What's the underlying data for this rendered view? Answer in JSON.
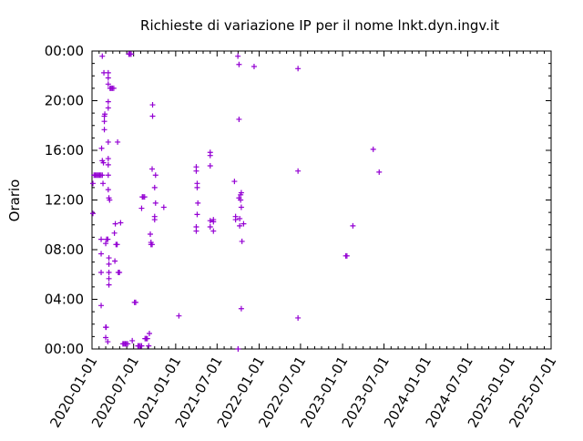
{
  "chart_data": {
    "type": "scatter",
    "title": "Richieste di variazione IP per il nome lnkt.dyn.ingv.it",
    "xlabel": "",
    "ylabel": "Orario",
    "x_axis_type": "date",
    "xlim": [
      "2020-01-01",
      "2025-07-01"
    ],
    "ylim": [
      "00:00",
      "24:00"
    ],
    "x_ticks": [
      "2020-01-01",
      "2020-07-01",
      "2021-01-01",
      "2021-07-01",
      "2022-01-01",
      "2022-07-01",
      "2023-01-01",
      "2023-07-01",
      "2024-01-01",
      "2024-07-01",
      "2025-01-01",
      "2025-07-01"
    ],
    "y_ticks": [
      "00:00",
      "04:00",
      "08:00",
      "12:00",
      "16:00",
      "20:00",
      "00:00"
    ],
    "grid": false,
    "marker": "plus",
    "series_color": "#9400d3",
    "series": [
      {
        "points": [
          [
            "2020-01-05",
            "10:55"
          ],
          [
            "2020-01-05",
            "13:20"
          ],
          [
            "2020-01-10",
            "14:00"
          ],
          [
            "2020-01-15",
            "14:00"
          ],
          [
            "2020-01-20",
            "14:00"
          ],
          [
            "2020-01-25",
            "14:00"
          ],
          [
            "2020-01-30",
            "14:00"
          ],
          [
            "2020-02-04",
            "14:00"
          ],
          [
            "2020-02-09",
            "14:00"
          ],
          [
            "2020-02-15",
            "14:00"
          ],
          [
            "2020-02-15",
            "23:35"
          ],
          [
            "2020-02-15",
            "15:10"
          ],
          [
            "2020-02-10",
            "08:50"
          ],
          [
            "2020-02-10",
            "07:40"
          ],
          [
            "2020-02-10",
            "06:10"
          ],
          [
            "2020-02-10",
            "03:30"
          ],
          [
            "2020-02-12",
            "16:10"
          ],
          [
            "2020-02-18",
            "13:20"
          ],
          [
            "2020-02-20",
            "15:00"
          ],
          [
            "2020-02-22",
            "22:15"
          ],
          [
            "2020-02-24",
            "17:40"
          ],
          [
            "2020-02-24",
            "18:20"
          ],
          [
            "2020-02-24",
            "18:45"
          ],
          [
            "2020-02-26",
            "18:55"
          ],
          [
            "2020-03-01",
            "01:45"
          ],
          [
            "2020-03-03",
            "01:45"
          ],
          [
            "2020-03-01",
            "00:55"
          ],
          [
            "2020-03-01",
            "08:30"
          ],
          [
            "2020-03-05",
            "08:50"
          ],
          [
            "2020-03-10",
            "08:50"
          ],
          [
            "2020-03-10",
            "00:35"
          ],
          [
            "2020-03-12",
            "22:15"
          ],
          [
            "2020-03-12",
            "21:50"
          ],
          [
            "2020-03-12",
            "21:20"
          ],
          [
            "2020-03-12",
            "19:55"
          ],
          [
            "2020-03-12",
            "19:25"
          ],
          [
            "2020-03-12",
            "16:40"
          ],
          [
            "2020-03-12",
            "15:20"
          ],
          [
            "2020-03-12",
            "14:50"
          ],
          [
            "2020-03-12",
            "14:00"
          ],
          [
            "2020-03-12",
            "12:50"
          ],
          [
            "2020-03-15",
            "12:10"
          ],
          [
            "2020-03-15",
            "07:20"
          ],
          [
            "2020-03-15",
            "06:50"
          ],
          [
            "2020-03-15",
            "06:10"
          ],
          [
            "2020-03-15",
            "05:40"
          ],
          [
            "2020-03-15",
            "05:10"
          ],
          [
            "2020-03-18",
            "12:00"
          ],
          [
            "2020-03-20",
            "21:00"
          ],
          [
            "2020-03-25",
            "21:00"
          ],
          [
            "2020-03-30",
            "21:00"
          ],
          [
            "2020-04-05",
            "21:00"
          ],
          [
            "2020-04-08",
            "09:20"
          ],
          [
            "2020-04-10",
            "07:05"
          ],
          [
            "2020-04-12",
            "10:05"
          ],
          [
            "2020-04-15",
            "08:25"
          ],
          [
            "2020-04-20",
            "08:25"
          ],
          [
            "2020-04-22",
            "16:40"
          ],
          [
            "2020-04-25",
            "06:10"
          ],
          [
            "2020-04-30",
            "06:10"
          ],
          [
            "2020-05-05",
            "10:10"
          ],
          [
            "2020-05-15",
            "00:25"
          ],
          [
            "2020-05-20",
            "00:25"
          ],
          [
            "2020-05-25",
            "00:25"
          ],
          [
            "2020-05-30",
            "00:25"
          ],
          [
            "2020-06-05",
            "00:25"
          ],
          [
            "2020-06-10",
            "23:45"
          ],
          [
            "2020-06-15",
            "23:45"
          ],
          [
            "2020-06-20",
            "23:45"
          ],
          [
            "2020-06-25",
            "00:40"
          ],
          [
            "2020-07-05",
            "03:45"
          ],
          [
            "2020-07-10",
            "03:45"
          ],
          [
            "2020-07-20",
            "00:15"
          ],
          [
            "2020-07-25",
            "00:15"
          ],
          [
            "2020-07-30",
            "00:15"
          ],
          [
            "2020-08-05",
            "00:15"
          ],
          [
            "2020-08-05",
            "11:20"
          ],
          [
            "2020-08-08",
            "12:15"
          ],
          [
            "2020-08-12",
            "12:15"
          ],
          [
            "2020-08-18",
            "12:15"
          ],
          [
            "2020-08-20",
            "00:50"
          ],
          [
            "2020-08-25",
            "00:50"
          ],
          [
            "2020-08-30",
            "00:50"
          ],
          [
            "2020-09-05",
            "00:15"
          ],
          [
            "2020-09-08",
            "01:15"
          ],
          [
            "2020-09-12",
            "09:15"
          ],
          [
            "2020-09-15",
            "08:35"
          ],
          [
            "2020-09-15",
            "08:25"
          ],
          [
            "2020-09-20",
            "08:25"
          ],
          [
            "2020-09-20",
            "14:30"
          ],
          [
            "2020-09-22",
            "19:40"
          ],
          [
            "2020-09-22",
            "18:45"
          ],
          [
            "2020-10-01",
            "10:40"
          ],
          [
            "2020-10-01",
            "10:25"
          ],
          [
            "2020-10-01",
            "13:00"
          ],
          [
            "2020-10-05",
            "14:00"
          ],
          [
            "2020-10-05",
            "11:45"
          ],
          [
            "2020-11-10",
            "11:25"
          ],
          [
            "2021-01-15",
            "02:40"
          ],
          [
            "2021-04-01",
            "14:40"
          ],
          [
            "2021-04-01",
            "14:20"
          ],
          [
            "2021-04-05",
            "13:00"
          ],
          [
            "2021-04-08",
            "11:45"
          ],
          [
            "2021-04-05",
            "10:50"
          ],
          [
            "2021-04-01",
            "09:50"
          ],
          [
            "2021-04-01",
            "09:30"
          ],
          [
            "2021-04-05",
            "13:20"
          ],
          [
            "2021-06-01",
            "15:50"
          ],
          [
            "2021-06-01",
            "15:35"
          ],
          [
            "2021-06-01",
            "14:45"
          ],
          [
            "2021-06-01",
            "10:20"
          ],
          [
            "2021-06-01",
            "09:50"
          ],
          [
            "2021-06-15",
            "10:25"
          ],
          [
            "2021-06-15",
            "10:15"
          ],
          [
            "2021-06-15",
            "09:30"
          ],
          [
            "2021-09-15",
            "13:30"
          ],
          [
            "2021-09-20",
            "10:40"
          ],
          [
            "2021-09-20",
            "10:25"
          ],
          [
            "2021-09-30",
            "23:35"
          ],
          [
            "2021-10-01",
            "00:00"
          ],
          [
            "2021-10-05",
            "22:55"
          ],
          [
            "2021-10-05",
            "18:30"
          ],
          [
            "2021-10-05",
            "12:10"
          ],
          [
            "2021-10-08",
            "10:30"
          ],
          [
            "2021-10-08",
            "09:55"
          ],
          [
            "2021-10-12",
            "12:25"
          ],
          [
            "2021-10-12",
            "12:00"
          ],
          [
            "2021-10-15",
            "12:35"
          ],
          [
            "2021-10-15",
            "11:25"
          ],
          [
            "2021-10-18",
            "08:40"
          ],
          [
            "2021-10-15",
            "03:15"
          ],
          [
            "2021-10-25",
            "10:05"
          ],
          [
            "2021-12-10",
            "22:45"
          ],
          [
            "2022-06-20",
            "22:35"
          ],
          [
            "2022-06-20",
            "14:20"
          ],
          [
            "2022-06-20",
            "02:30"
          ],
          [
            "2023-01-15",
            "07:30"
          ],
          [
            "2023-01-20",
            "07:30"
          ],
          [
            "2023-02-15",
            "09:55"
          ],
          [
            "2023-05-15",
            "16:05"
          ],
          [
            "2023-06-10",
            "14:15"
          ]
        ]
      }
    ]
  }
}
